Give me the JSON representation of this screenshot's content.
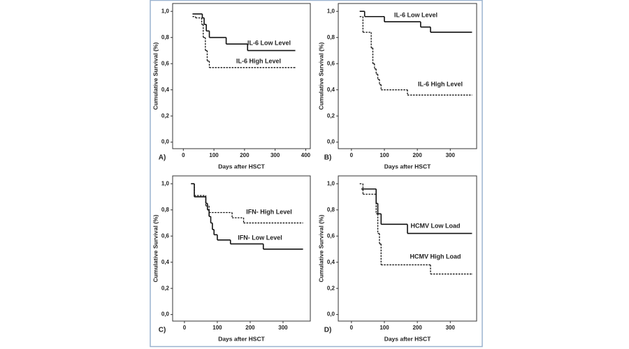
{
  "chart_data": [
    {
      "type": "line",
      "panel_label": "A)",
      "xlabel": "Days after HSCT",
      "ylabel": "Cumulative Survival (%)",
      "xlim": [
        -35,
        415
      ],
      "xticks": [
        0,
        100,
        200,
        300,
        400
      ],
      "ylim": [
        -0.05,
        1.06
      ],
      "yticks": [
        {
          "value": 0,
          "label": "0,0"
        },
        {
          "value": 0.2,
          "label": "0,2"
        },
        {
          "value": 0.4,
          "label": "0,4"
        },
        {
          "value": 0.6,
          "label": "0,6"
        },
        {
          "value": 0.8,
          "label": "0,8"
        },
        {
          "value": 1,
          "label": "1,0"
        }
      ],
      "series": [
        {
          "name": "IL-6 Low Level",
          "style": "solid",
          "color": "#111111",
          "x": [
            30,
            62,
            68,
            75,
            85,
            140,
            210,
            365
          ],
          "values": [
            0.98,
            0.95,
            0.9,
            0.85,
            0.8,
            0.75,
            0.7,
            0.7
          ]
        },
        {
          "name": "IL-6 High Level",
          "style": "dotted",
          "color": "#111111",
          "x": [
            30,
            40,
            60,
            65,
            72,
            78,
            85,
            365
          ],
          "values": [
            0.96,
            0.95,
            0.9,
            0.8,
            0.7,
            0.62,
            0.57,
            0.57
          ]
        }
      ]
    },
    {
      "type": "line",
      "panel_label": "B)",
      "xlabel": "Days after HSCT",
      "ylabel": "Cumulative Survival (%)",
      "xlim": [
        -40,
        380
      ],
      "xticks": [
        0,
        100,
        200,
        300
      ],
      "ylim": [
        -0.05,
        1.06
      ],
      "yticks": [
        {
          "value": 0,
          "label": "0,0"
        },
        {
          "value": 0.2,
          "label": "0,2"
        },
        {
          "value": 0.4,
          "label": "0,4"
        },
        {
          "value": 0.6,
          "label": "0,6"
        },
        {
          "value": 0.8,
          "label": "0,8"
        },
        {
          "value": 1,
          "label": "1,0"
        }
      ],
      "series": [
        {
          "name": "IL-6 Low Level",
          "style": "solid",
          "color": "#111111",
          "x": [
            25,
            40,
            100,
            210,
            240,
            365
          ],
          "values": [
            1.0,
            0.96,
            0.92,
            0.88,
            0.84,
            0.84
          ]
        },
        {
          "name": "IL-6 High Level",
          "style": "dotted",
          "color": "#111111",
          "x": [
            25,
            35,
            60,
            65,
            70,
            75,
            80,
            85,
            90,
            170,
            365
          ],
          "values": [
            0.96,
            0.84,
            0.72,
            0.6,
            0.56,
            0.52,
            0.48,
            0.44,
            0.4,
            0.36,
            0.36
          ]
        }
      ]
    },
    {
      "type": "line",
      "panel_label": "C)",
      "xlabel": "Days after HSCT",
      "ylabel": "Cumulative Survival (%)",
      "xlim": [
        -36,
        383
      ],
      "xticks": [
        0,
        100,
        200,
        300
      ],
      "ylim": [
        -0.05,
        1.06
      ],
      "yticks": [
        {
          "value": 0,
          "label": "0,0"
        },
        {
          "value": 0.2,
          "label": "0,2"
        },
        {
          "value": 0.4,
          "label": "0,4"
        },
        {
          "value": 0.6,
          "label": "0,6"
        },
        {
          "value": 0.8,
          "label": "0,8"
        },
        {
          "value": 1,
          "label": "1,0"
        }
      ],
      "series": [
        {
          "name": "IFN-  High Level",
          "style": "dotted",
          "color": "#111111",
          "x": [
            20,
            30,
            65,
            75,
            145,
            180,
            360
          ],
          "values": [
            1.0,
            0.91,
            0.83,
            0.78,
            0.74,
            0.7,
            0.7
          ]
        },
        {
          "name": "IFN-  Low Level",
          "style": "solid",
          "color": "#111111",
          "x": [
            20,
            30,
            65,
            70,
            75,
            80,
            85,
            90,
            100,
            140,
            240,
            360
          ],
          "values": [
            1.0,
            0.9,
            0.85,
            0.8,
            0.75,
            0.7,
            0.65,
            0.61,
            0.57,
            0.54,
            0.5,
            0.5
          ]
        }
      ]
    },
    {
      "type": "line",
      "panel_label": "D)",
      "xlabel": "Days after HSCT",
      "ylabel": "Cumulative Survival (%)",
      "xlim": [
        -40,
        380
      ],
      "xticks": [
        0,
        100,
        200,
        300
      ],
      "ylim": [
        -0.05,
        1.06
      ],
      "yticks": [
        {
          "value": 0,
          "label": "0,0"
        },
        {
          "value": 0.2,
          "label": "0,2"
        },
        {
          "value": 0.4,
          "label": "0,4"
        },
        {
          "value": 0.6,
          "label": "0,6"
        },
        {
          "value": 0.8,
          "label": "0,8"
        },
        {
          "value": 1,
          "label": "1,0"
        }
      ],
      "series": [
        {
          "name": "HCMV Low Load",
          "style": "solid",
          "color": "#111111",
          "x": [
            30,
            75,
            80,
            90,
            170,
            365
          ],
          "values": [
            0.96,
            0.85,
            0.77,
            0.69,
            0.62,
            0.62
          ]
        },
        {
          "name": "HCMV High Load",
          "style": "dotted",
          "color": "#111111",
          "x": [
            25,
            35,
            75,
            80,
            85,
            90,
            240,
            365
          ],
          "values": [
            1.0,
            0.92,
            0.77,
            0.62,
            0.54,
            0.38,
            0.31,
            0.31
          ]
        }
      ]
    }
  ]
}
